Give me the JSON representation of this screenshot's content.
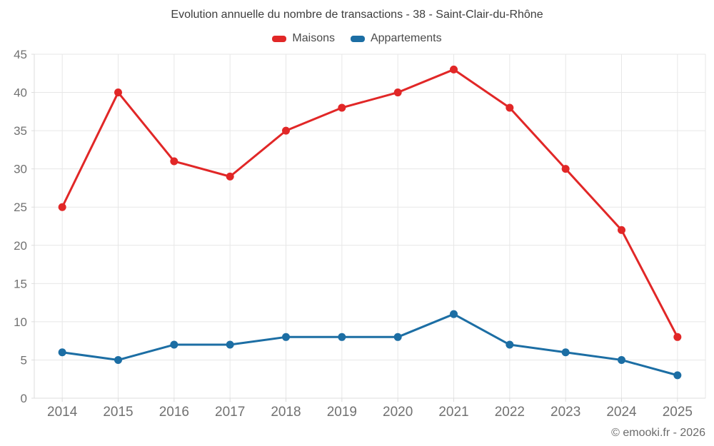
{
  "chart": {
    "title": "Evolution annuelle du nombre de transactions - 38 - Saint-Clair-du-Rhône"
  },
  "chart_data": {
    "type": "line",
    "categories": [
      "2014",
      "2015",
      "2016",
      "2017",
      "2018",
      "2019",
      "2020",
      "2021",
      "2022",
      "2023",
      "2024",
      "2025"
    ],
    "series": [
      {
        "name": "Maisons",
        "color": "#e12727",
        "values": [
          25,
          40,
          31,
          29,
          35,
          38,
          40,
          43,
          38,
          30,
          22,
          8
        ]
      },
      {
        "name": "Appartements",
        "color": "#1c6ea4",
        "values": [
          6,
          5,
          7,
          7,
          8,
          8,
          8,
          11,
          7,
          6,
          5,
          3
        ]
      }
    ],
    "title": "Evolution annuelle du nombre de transactions - 38 - Saint-Clair-du-Rhône",
    "xlabel": "",
    "ylabel": "",
    "ylim": [
      0,
      45
    ],
    "yticks": [
      0,
      5,
      10,
      15,
      20,
      25,
      30,
      35,
      40,
      45
    ],
    "grid": true,
    "legend_position": "top",
    "marker": "circle"
  },
  "colors": {
    "grid": "#e7e7e7",
    "axis": "#dcdcdc",
    "tick_label": "#717171",
    "title_text": "#3d3d3d",
    "legend_text": "#4a4a4a",
    "footer_text": "#6b6b6b"
  },
  "footer": {
    "copyright": "© emooki.fr - 2026"
  }
}
